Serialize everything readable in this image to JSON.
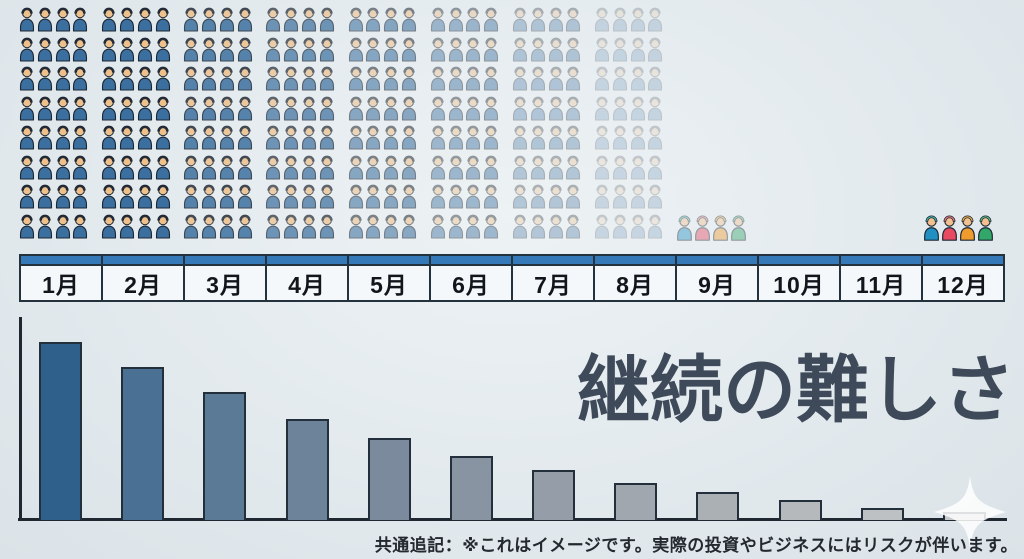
{
  "page": {
    "background": "#e3eaee"
  },
  "title": {
    "text": "継続の難しさ",
    "color": "#3e4a59"
  },
  "footer": {
    "text": "共通追記：※これはイメージです。実際の投資やビジネスにはリスクが伴います。"
  },
  "axis": {
    "months": [
      "1月",
      "2月",
      "3月",
      "4月",
      "5月",
      "6月",
      "7月",
      "8月",
      "9月",
      "10月",
      "11月",
      "12月"
    ],
    "header_color": "#3579b8",
    "cell_bg": "#f5f8fa",
    "border_color": "#24323e"
  },
  "icons": {
    "person_icon": {
      "hair": "#262c38",
      "face": "#eec08c",
      "body": "#3a6f9f",
      "outline": "#1c2733"
    },
    "survivor_face": "#f2c18f",
    "survivor_outline": "#1c2733",
    "survivors": [
      {
        "name": "blue-person",
        "hair": "#49b8b2",
        "body": "#2090c2"
      },
      {
        "name": "red-person",
        "hair": "#f07f88",
        "body": "#e74a61"
      },
      {
        "name": "orange-person",
        "hair": "#f6b54f",
        "body": "#f09b2d"
      },
      {
        "name": "green-person",
        "hair": "#5ec291",
        "body": "#33a669"
      }
    ]
  },
  "chart_data": [
    {
      "type": "pictograph",
      "title": "継続の難しさ",
      "description": "Crowd of person icons per month fading out from January to August; only 4 colorful people remain, pale at September and vivid at December.",
      "rows": 8,
      "cols_per_month": 4,
      "groups": [
        {
          "month": "1月",
          "kind": "crowd",
          "icon_count": 32,
          "opacity": 1
        },
        {
          "month": "2月",
          "kind": "crowd",
          "icon_count": 32,
          "opacity": 1
        },
        {
          "month": "3月",
          "kind": "crowd",
          "icon_count": 32,
          "opacity": 0.84
        },
        {
          "month": "4月",
          "kind": "crowd",
          "icon_count": 32,
          "opacity": 0.7
        },
        {
          "month": "5月",
          "kind": "crowd",
          "icon_count": 32,
          "opacity": 0.56
        },
        {
          "month": "6月",
          "kind": "crowd",
          "icon_count": 32,
          "opacity": 0.44
        },
        {
          "month": "7月",
          "kind": "crowd",
          "icon_count": 32,
          "opacity": 0.32
        },
        {
          "month": "8月",
          "kind": "crowd",
          "icon_count": 32,
          "opacity": 0.2
        },
        {
          "month": "9月",
          "kind": "survivors",
          "icon_count": 4,
          "opacity": 0.42
        },
        {
          "month": "10月",
          "kind": "empty",
          "icon_count": 0,
          "opacity": 0
        },
        {
          "month": "11月",
          "kind": "empty",
          "icon_count": 0,
          "opacity": 0
        },
        {
          "month": "12月",
          "kind": "survivors",
          "icon_count": 4,
          "opacity": 1
        }
      ]
    },
    {
      "type": "bar",
      "title": "継続の難しさ",
      "categories": [
        "1月",
        "2月",
        "3月",
        "4月",
        "5月",
        "6月",
        "7月",
        "8月",
        "9月",
        "10月",
        "11月",
        "12月"
      ],
      "values": [
        100,
        86,
        72,
        57,
        46,
        36,
        28,
        21,
        16,
        11,
        7,
        4.5
      ],
      "unit": "relative height % (no numeric axis labels shown)",
      "ylim": [
        0,
        100
      ],
      "grid": false,
      "bar_colors": [
        "#2f5f8b",
        "#4a7093",
        "#5b7a95",
        "#6c8399",
        "#7b8b9d",
        "#8994a2",
        "#959da8",
        "#a1a7ae",
        "#abb0b4",
        "#b5b9bc",
        "#bec1c4",
        "#c6c9cb"
      ],
      "border_color": "#232f3a",
      "axis_color": "#1f2730"
    }
  ]
}
